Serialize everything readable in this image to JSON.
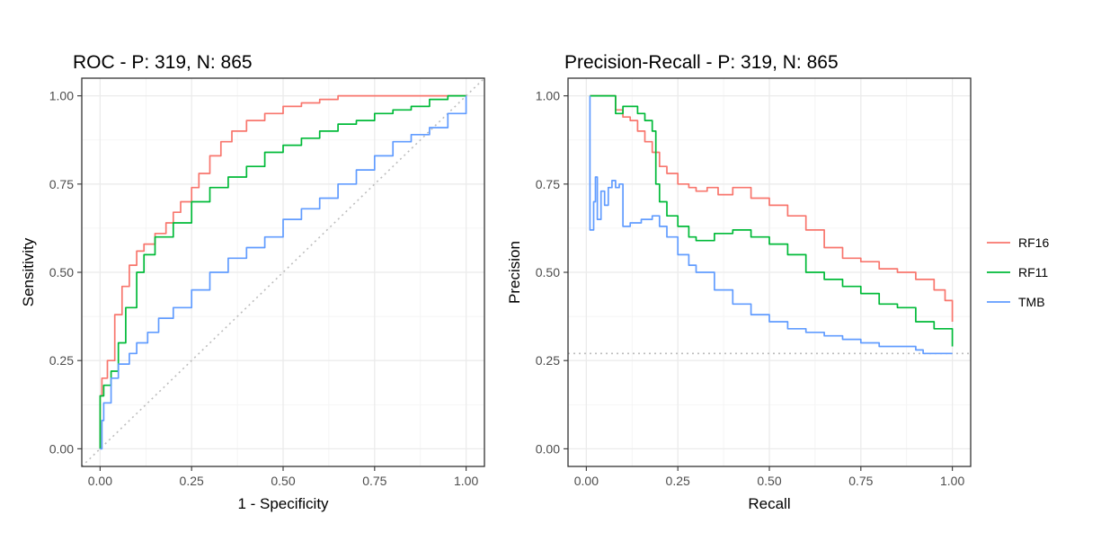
{
  "chart_data": [
    {
      "type": "line",
      "title": "ROC - P: 319, N: 865",
      "xlabel": "1 - Specificity",
      "ylabel": "Sensitivity",
      "xlim": [
        -0.05,
        1.05
      ],
      "ylim": [
        -0.05,
        1.05
      ],
      "xticks": [
        "0.00",
        "0.25",
        "0.50",
        "0.75",
        "1.00"
      ],
      "yticks": [
        "0.00",
        "0.25",
        "0.50",
        "0.75",
        "1.00"
      ],
      "grid": true,
      "reference_line": {
        "style": "dotted",
        "x": [
          0,
          1
        ],
        "y": [
          0,
          1
        ]
      },
      "series": [
        {
          "name": "RF16",
          "color": "#F8766D",
          "x": [
            0,
            0.0,
            0.005,
            0.02,
            0.04,
            0.06,
            0.08,
            0.1,
            0.12,
            0.15,
            0.18,
            0.2,
            0.22,
            0.25,
            0.27,
            0.3,
            0.33,
            0.36,
            0.4,
            0.45,
            0.5,
            0.55,
            0.6,
            0.65,
            0.7,
            0.8,
            0.9,
            1.0
          ],
          "y": [
            0,
            0.15,
            0.2,
            0.25,
            0.38,
            0.46,
            0.52,
            0.56,
            0.58,
            0.61,
            0.64,
            0.67,
            0.7,
            0.74,
            0.78,
            0.83,
            0.87,
            0.9,
            0.93,
            0.95,
            0.97,
            0.98,
            0.99,
            1.0,
            1.0,
            1.0,
            1.0,
            1.0
          ]
        },
        {
          "name": "RF11",
          "color": "#00BA38",
          "x": [
            0,
            0.0,
            0.01,
            0.03,
            0.05,
            0.07,
            0.1,
            0.12,
            0.15,
            0.2,
            0.25,
            0.3,
            0.35,
            0.4,
            0.45,
            0.5,
            0.55,
            0.6,
            0.65,
            0.7,
            0.75,
            0.8,
            0.85,
            0.9,
            0.95,
            1.0
          ],
          "y": [
            0,
            0.15,
            0.18,
            0.22,
            0.3,
            0.4,
            0.5,
            0.55,
            0.6,
            0.64,
            0.7,
            0.74,
            0.77,
            0.8,
            0.84,
            0.86,
            0.88,
            0.9,
            0.92,
            0.93,
            0.95,
            0.96,
            0.97,
            0.99,
            1.0,
            1.0
          ]
        },
        {
          "name": "TMB",
          "color": "#619CFF",
          "x": [
            0,
            0.005,
            0.01,
            0.03,
            0.05,
            0.08,
            0.1,
            0.13,
            0.16,
            0.2,
            0.25,
            0.3,
            0.35,
            0.4,
            0.45,
            0.5,
            0.55,
            0.6,
            0.65,
            0.7,
            0.75,
            0.8,
            0.85,
            0.9,
            0.95,
            1.0
          ],
          "y": [
            0,
            0.08,
            0.13,
            0.2,
            0.24,
            0.27,
            0.3,
            0.33,
            0.37,
            0.4,
            0.45,
            0.5,
            0.54,
            0.57,
            0.6,
            0.65,
            0.68,
            0.71,
            0.75,
            0.79,
            0.83,
            0.87,
            0.89,
            0.91,
            0.95,
            1.0
          ]
        }
      ]
    },
    {
      "type": "line",
      "title": "Precision-Recall - P: 319, N: 865",
      "xlabel": "Recall",
      "ylabel": "Precision",
      "xlim": [
        -0.05,
        1.05
      ],
      "ylim": [
        -0.05,
        1.05
      ],
      "xticks": [
        "0.00",
        "0.25",
        "0.50",
        "0.75",
        "1.00"
      ],
      "yticks": [
        "0.00",
        "0.25",
        "0.50",
        "0.75",
        "1.00"
      ],
      "grid": true,
      "reference_line": {
        "style": "dotted",
        "y": 0.27
      },
      "legend": {
        "position": "right",
        "entries": [
          "RF16",
          "RF11",
          "TMB"
        ]
      },
      "series": [
        {
          "name": "RF16",
          "color": "#F8766D",
          "x": [
            0.01,
            0.05,
            0.08,
            0.1,
            0.12,
            0.14,
            0.16,
            0.18,
            0.2,
            0.22,
            0.25,
            0.28,
            0.3,
            0.33,
            0.36,
            0.4,
            0.45,
            0.5,
            0.55,
            0.6,
            0.65,
            0.7,
            0.75,
            0.8,
            0.85,
            0.9,
            0.95,
            0.98,
            1.0
          ],
          "y": [
            1.0,
            1.0,
            0.96,
            0.94,
            0.93,
            0.9,
            0.87,
            0.84,
            0.8,
            0.78,
            0.75,
            0.74,
            0.73,
            0.74,
            0.72,
            0.74,
            0.71,
            0.69,
            0.66,
            0.62,
            0.57,
            0.54,
            0.53,
            0.51,
            0.5,
            0.48,
            0.45,
            0.42,
            0.36
          ]
        },
        {
          "name": "RF11",
          "color": "#00BA38",
          "x": [
            0.01,
            0.07,
            0.08,
            0.1,
            0.12,
            0.14,
            0.16,
            0.18,
            0.19,
            0.2,
            0.22,
            0.25,
            0.28,
            0.3,
            0.35,
            0.4,
            0.45,
            0.5,
            0.55,
            0.6,
            0.65,
            0.7,
            0.75,
            0.8,
            0.85,
            0.9,
            0.95,
            1.0
          ],
          "y": [
            1.0,
            1.0,
            0.95,
            0.97,
            0.97,
            0.95,
            0.93,
            0.9,
            0.75,
            0.7,
            0.66,
            0.63,
            0.6,
            0.59,
            0.61,
            0.62,
            0.6,
            0.58,
            0.55,
            0.5,
            0.48,
            0.46,
            0.44,
            0.41,
            0.4,
            0.36,
            0.34,
            0.29
          ]
        },
        {
          "name": "TMB",
          "color": "#619CFF",
          "x": [
            0.01,
            0.01,
            0.02,
            0.025,
            0.03,
            0.04,
            0.05,
            0.06,
            0.07,
            0.08,
            0.09,
            0.1,
            0.12,
            0.15,
            0.18,
            0.2,
            0.22,
            0.25,
            0.28,
            0.3,
            0.35,
            0.4,
            0.45,
            0.5,
            0.55,
            0.6,
            0.65,
            0.7,
            0.75,
            0.8,
            0.85,
            0.9,
            0.92,
            0.95,
            1.0
          ],
          "y": [
            1.0,
            0.62,
            0.7,
            0.77,
            0.65,
            0.73,
            0.69,
            0.74,
            0.76,
            0.74,
            0.75,
            0.63,
            0.64,
            0.65,
            0.66,
            0.63,
            0.6,
            0.55,
            0.52,
            0.5,
            0.45,
            0.41,
            0.38,
            0.36,
            0.34,
            0.33,
            0.32,
            0.31,
            0.3,
            0.29,
            0.29,
            0.28,
            0.27,
            0.27,
            0.27
          ]
        }
      ]
    }
  ]
}
